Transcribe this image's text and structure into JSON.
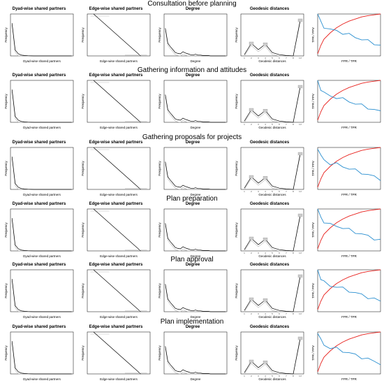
{
  "colors": {
    "observed": "#000000",
    "simulated": "#bbbbbb",
    "tpr": "#e8201c",
    "ppv": "#2a8fd0",
    "box": "#cccccc"
  },
  "panel_titles": {
    "dyad": "Dyad-wise shared partners",
    "edge": "Edge-wise shared partners",
    "degree": "Degree",
    "geodesic": "Geodesic distances"
  },
  "axis_labels": {
    "frequency": "Frequency",
    "dyad_x": "Dyad-wise shared partners",
    "edge_x": "Edge-wise shared partners",
    "degree_x": "Degree",
    "geodesic_x": "Geodesic distances",
    "roc_y": "TPR / PPV",
    "roc_x": "FPR / TPR"
  },
  "rows": [
    {
      "title": "Consultation before planning"
    },
    {
      "title": "Gathering information and attitudes"
    },
    {
      "title": "Gathering proposals for projects"
    },
    {
      "title": "Plan preparation"
    },
    {
      "title": "Plan approval"
    },
    {
      "title": "Plan implementation"
    }
  ],
  "chart_data": [
    {
      "type": "line",
      "panel": "Dyad-wise shared partners (all rows)",
      "series": [
        {
          "values": [
            0.78,
            0.14,
            0.05,
            0.02,
            0.01,
            0.005,
            0.002,
            0,
            0,
            0,
            0,
            0,
            0,
            0,
            0,
            0,
            0,
            0,
            0,
            0
          ]
        }
      ]
    },
    {
      "type": "line",
      "panel": "Edge-wise shared partners (all rows)",
      "series": [
        {
          "values": [
            1.0,
            0.0
          ]
        }
      ]
    },
    {
      "type": "line",
      "panel": "Degree (all rows)",
      "series": [
        {
          "values": [
            0.66,
            0.3,
            0.22,
            0.15,
            0.08,
            0.06,
            0.05,
            0.1,
            0.07,
            0.05,
            0.03,
            0.02,
            0.04,
            0.02,
            0.02,
            0.01,
            0.01,
            0.01,
            0,
            0,
            0,
            0,
            0,
            0,
            0
          ]
        }
      ]
    },
    {
      "type": "line",
      "panel": "Geodesic distances (all rows)",
      "categories": [
        "1",
        "2",
        "3",
        "4",
        "5",
        "6",
        "7",
        "8",
        "Inf"
      ],
      "series": [
        {
          "values": [
            0.03,
            0.3,
            0.15,
            0.28,
            0.08,
            0.03,
            0.01,
            0.0,
            0.85
          ]
        }
      ]
    },
    {
      "type": "line",
      "panel": "ROC / PR (all rows)",
      "x": [
        0,
        0.05,
        0.1,
        0.2,
        0.3,
        0.4,
        0.5,
        0.6,
        0.7,
        0.8,
        0.9,
        1.0
      ],
      "series": [
        {
          "values": [
            0.05,
            0.25,
            0.4,
            0.55,
            0.67,
            0.76,
            0.83,
            0.88,
            0.93,
            0.96,
            0.98,
            1.0
          ]
        },
        {
          "values": [
            1.0,
            0.8,
            0.7,
            0.62,
            0.6,
            0.55,
            0.5,
            0.45,
            0.4,
            0.35,
            0.3,
            0.25
          ]
        }
      ]
    }
  ]
}
